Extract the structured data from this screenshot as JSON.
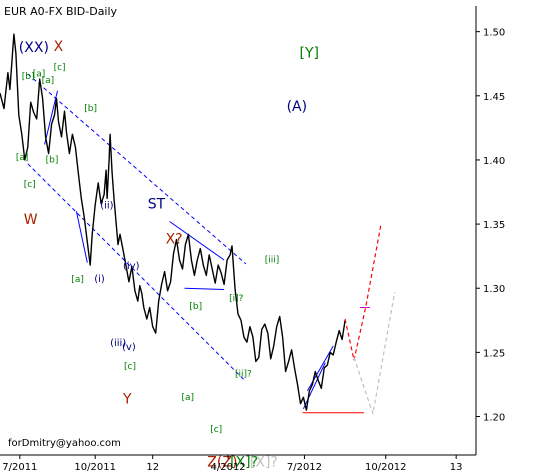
{
  "chart_data": {
    "type": "line",
    "title": "EUR A0-FX BID-Daily",
    "footer": "forDmitry@yahoo.com",
    "ylim": [
      1.17,
      1.52
    ],
    "y_ticks": [
      1.2,
      1.25,
      1.3,
      1.35,
      1.4,
      1.45,
      1.5
    ],
    "y_tick_labels": [
      "1.20",
      "1.25",
      "1.30",
      "1.35",
      "1.40",
      "1.45",
      "1.50"
    ],
    "x_tick_labels": [
      "7/2011",
      "10/2011",
      "12",
      "4/2012",
      "7/2012",
      "10/2012",
      "13"
    ],
    "x_tick_days": [
      20,
      96,
      154,
      230,
      307,
      389,
      460
    ],
    "x_domain_days": [
      0,
      480
    ],
    "series": [
      {
        "values": [
          [
            0,
            1.452
          ],
          [
            4,
            1.44
          ],
          [
            8,
            1.468
          ],
          [
            10,
            1.455
          ],
          [
            14,
            1.498
          ],
          [
            16,
            1.483
          ],
          [
            19,
            1.435
          ],
          [
            22,
            1.42
          ],
          [
            25,
            1.4
          ],
          [
            28,
            1.41
          ],
          [
            31,
            1.445
          ],
          [
            34,
            1.437
          ],
          [
            37,
            1.432
          ],
          [
            40,
            1.463
          ],
          [
            43,
            1.448
          ],
          [
            46,
            1.418
          ],
          [
            49,
            1.405
          ],
          [
            52,
            1.428
          ],
          [
            55,
            1.435
          ],
          [
            57,
            1.448
          ],
          [
            59,
            1.43
          ],
          [
            62,
            1.418
          ],
          [
            65,
            1.438
          ],
          [
            67,
            1.422
          ],
          [
            70,
            1.405
          ],
          [
            73,
            1.42
          ],
          [
            76,
            1.41
          ],
          [
            79,
            1.39
          ],
          [
            82,
            1.37
          ],
          [
            85,
            1.355
          ],
          [
            88,
            1.336
          ],
          [
            91,
            1.318
          ],
          [
            93,
            1.342
          ],
          [
            96,
            1.365
          ],
          [
            99,
            1.382
          ],
          [
            102,
            1.366
          ],
          [
            105,
            1.373
          ],
          [
            107,
            1.392
          ],
          [
            108,
            1.37
          ],
          [
            110,
            1.4
          ],
          [
            111,
            1.42
          ],
          [
            113,
            1.39
          ],
          [
            115,
            1.37
          ],
          [
            117,
            1.352
          ],
          [
            119,
            1.334
          ],
          [
            121,
            1.342
          ],
          [
            124,
            1.33
          ],
          [
            127,
            1.318
          ],
          [
            130,
            1.305
          ],
          [
            133,
            1.317
          ],
          [
            136,
            1.298
          ],
          [
            139,
            1.29
          ],
          [
            141,
            1.302
          ],
          [
            143,
            1.296
          ],
          [
            145,
            1.285
          ],
          [
            148,
            1.276
          ],
          [
            151,
            1.285
          ],
          [
            154,
            1.27
          ],
          [
            157,
            1.265
          ],
          [
            160,
            1.29
          ],
          [
            163,
            1.303
          ],
          [
            166,
            1.313
          ],
          [
            169,
            1.298
          ],
          [
            172,
            1.305
          ],
          [
            175,
            1.327
          ],
          [
            178,
            1.338
          ],
          [
            181,
            1.322
          ],
          [
            184,
            1.315
          ],
          [
            187,
            1.334
          ],
          [
            190,
            1.342
          ],
          [
            193,
            1.322
          ],
          [
            196,
            1.31
          ],
          [
            199,
            1.322
          ],
          [
            202,
            1.331
          ],
          [
            205,
            1.318
          ],
          [
            208,
            1.31
          ],
          [
            211,
            1.326
          ],
          [
            214,
            1.315
          ],
          [
            217,
            1.304
          ],
          [
            220,
            1.318
          ],
          [
            223,
            1.312
          ],
          [
            226,
            1.303
          ],
          [
            229,
            1.322
          ],
          [
            232,
            1.326
          ],
          [
            234,
            1.333
          ],
          [
            237,
            1.3
          ],
          [
            240,
            1.28
          ],
          [
            243,
            1.275
          ],
          [
            246,
            1.262
          ],
          [
            249,
            1.258
          ],
          [
            252,
            1.27
          ],
          [
            255,
            1.262
          ],
          [
            258,
            1.243
          ],
          [
            261,
            1.246
          ],
          [
            264,
            1.268
          ],
          [
            267,
            1.272
          ],
          [
            270,
            1.265
          ],
          [
            273,
            1.245
          ],
          [
            276,
            1.255
          ],
          [
            279,
            1.27
          ],
          [
            282,
            1.278
          ],
          [
            285,
            1.262
          ],
          [
            288,
            1.235
          ],
          [
            291,
            1.243
          ],
          [
            294,
            1.252
          ],
          [
            297,
            1.238
          ],
          [
            300,
            1.225
          ],
          [
            303,
            1.21
          ],
          [
            306,
            1.215
          ],
          [
            309,
            1.205
          ],
          [
            312,
            1.22
          ],
          [
            315,
            1.225
          ],
          [
            318,
            1.235
          ],
          [
            321,
            1.228
          ],
          [
            324,
            1.222
          ],
          [
            327,
            1.238
          ],
          [
            330,
            1.24
          ],
          [
            333,
            1.25
          ],
          [
            336,
            1.248
          ],
          [
            339,
            1.258
          ],
          [
            342,
            1.267
          ],
          [
            345,
            1.26
          ],
          [
            348,
            1.275
          ]
        ]
      }
    ],
    "projections": [
      {
        "color": "#ff0000",
        "points": [
          [
            348,
            1.276
          ],
          [
            357,
            1.244
          ],
          [
            369,
            1.286
          ],
          [
            384,
            1.349
          ]
        ]
      },
      {
        "color": "#c0c0c0",
        "points": [
          [
            357,
            1.246
          ],
          [
            376,
            1.202
          ],
          [
            398,
            1.297
          ]
        ]
      }
    ],
    "trend_lines": [
      {
        "color": "#0000ff",
        "dashed": true,
        "points": [
          [
            28,
            1.467
          ],
          [
            248,
            1.319
          ]
        ]
      },
      {
        "color": "#0000ff",
        "dashed": true,
        "points": [
          [
            28,
            1.397
          ],
          [
            247,
            1.228
          ]
        ]
      },
      {
        "color": "#0000ff",
        "dashed": false,
        "points": [
          [
            171,
            1.352
          ],
          [
            226,
            1.322
          ]
        ]
      },
      {
        "color": "#0000ff",
        "dashed": false,
        "points": [
          [
            186,
            1.3
          ],
          [
            226,
            1.299
          ]
        ]
      },
      {
        "color": "#0000ff",
        "dashed": false,
        "points": [
          [
            45,
            1.412
          ],
          [
            58,
            1.454
          ]
        ]
      },
      {
        "color": "#0000ff",
        "dashed": false,
        "points": [
          [
            77,
            1.36
          ],
          [
            88,
            1.32
          ]
        ]
      },
      {
        "color": "#0000ff",
        "dashed": false,
        "points": [
          [
            306,
            1.206
          ],
          [
            328,
            1.242
          ]
        ]
      },
      {
        "color": "#0000ff",
        "dashed": false,
        "points": [
          [
            310,
            1.22
          ],
          [
            336,
            1.255
          ]
        ]
      },
      {
        "color": "#ff0000",
        "dashed": false,
        "points": [
          [
            305,
            1.203
          ],
          [
            367,
            1.203
          ]
        ]
      },
      {
        "color": "#cc00cc",
        "dashed": false,
        "points": [
          [
            363,
            1.285
          ],
          [
            373,
            1.285
          ]
        ]
      }
    ],
    "annotations": [
      {
        "text": "(XX)",
        "x": 19,
        "y": 1.484,
        "color": "#000080",
        "size": 14
      },
      {
        "text": "X",
        "x": 54,
        "y": 1.485,
        "color": "#aa2200",
        "size": 14
      },
      {
        "text": "[a]",
        "x": 33,
        "y": 1.465,
        "color": "#008000",
        "size": 9
      },
      {
        "text": "[b]",
        "x": 22,
        "y": 1.463,
        "color": "#008000",
        "size": 9
      },
      {
        "text": "[a]",
        "x": 42,
        "y": 1.46,
        "color": "#008000",
        "size": 9
      },
      {
        "text": "[c]",
        "x": 54,
        "y": 1.47,
        "color": "#008000",
        "size": 9
      },
      {
        "text": "[a]",
        "x": 16,
        "y": 1.4,
        "color": "#008000",
        "size": 9
      },
      {
        "text": "[b]",
        "x": 46,
        "y": 1.398,
        "color": "#008000",
        "size": 9
      },
      {
        "text": "[b]",
        "x": 85,
        "y": 1.438,
        "color": "#008000",
        "size": 9
      },
      {
        "text": "[c]",
        "x": 24,
        "y": 1.379,
        "color": "#008000",
        "size": 9
      },
      {
        "text": "W",
        "x": 24,
        "y": 1.35,
        "color": "#aa2200",
        "size": 14
      },
      {
        "text": "(ii)",
        "x": 101,
        "y": 1.362,
        "color": "#000080",
        "size": 10
      },
      {
        "text": "ST",
        "x": 149,
        "y": 1.362,
        "color": "#000080",
        "size": 14
      },
      {
        "text": "X?",
        "x": 167,
        "y": 1.335,
        "color": "#aa2200",
        "size": 14
      },
      {
        "text": "[iii]",
        "x": 267,
        "y": 1.32,
        "color": "#008000",
        "size": 9
      },
      {
        "text": "[a]",
        "x": 72,
        "y": 1.305,
        "color": "#008000",
        "size": 9
      },
      {
        "text": "(i)",
        "x": 95,
        "y": 1.305,
        "color": "#000080",
        "size": 10
      },
      {
        "text": "(iv)",
        "x": 124,
        "y": 1.315,
        "color": "#000080",
        "size": 10
      },
      {
        "text": "(v)",
        "x": 123,
        "y": 1.252,
        "color": "#000080",
        "size": 10
      },
      {
        "text": "(iii)",
        "x": 111,
        "y": 1.255,
        "color": "#000080",
        "size": 10
      },
      {
        "text": "[c]",
        "x": 125,
        "y": 1.237,
        "color": "#008000",
        "size": 9
      },
      {
        "text": "Y",
        "x": 124,
        "y": 1.21,
        "color": "#aa2200",
        "size": 14
      },
      {
        "text": "[b]",
        "x": 191,
        "y": 1.284,
        "color": "#008000",
        "size": 9
      },
      {
        "text": "[a]",
        "x": 183,
        "y": 1.213,
        "color": "#008000",
        "size": 9
      },
      {
        "text": "[c]",
        "x": 212,
        "y": 1.188,
        "color": "#008000",
        "size": 9
      },
      {
        "text": "[i]?",
        "x": 231,
        "y": 1.29,
        "color": "#008000",
        "size": 9
      },
      {
        "text": "[ii]?",
        "x": 237,
        "y": 1.231,
        "color": "#008000",
        "size": 9
      },
      {
        "text": "Z(Z)",
        "x": 209,
        "y": 1.161,
        "color": "#aa2200",
        "size": 14
      },
      {
        "text": "[X]?",
        "x": 232,
        "y": 1.161,
        "color": "#008000",
        "size": 14
      },
      {
        "text": "[X]?",
        "x": 252,
        "y": 1.161,
        "color": "#c0c0c0",
        "size": 14
      },
      {
        "text": "[Y]",
        "x": 302,
        "y": 1.48,
        "color": "#008000",
        "size": 14
      },
      {
        "text": "(A)",
        "x": 289,
        "y": 1.438,
        "color": "#000080",
        "size": 14
      }
    ],
    "grid": false,
    "legend": "none",
    "price_color": "#000000"
  }
}
